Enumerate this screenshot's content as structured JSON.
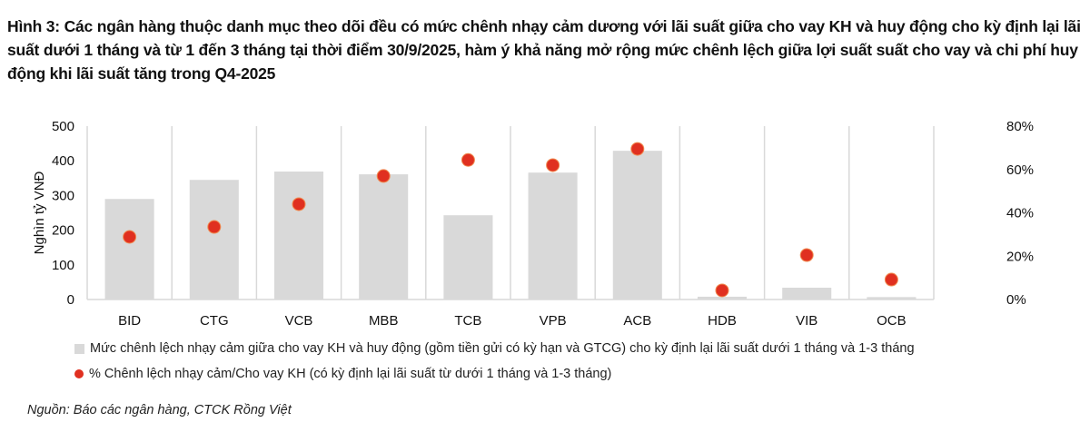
{
  "title": "Hình 3: Các ngân hàng thuộc danh mục theo dõi đều có mức chênh nhạy cảm dương với lãi suất giữa cho vay KH và huy động cho kỳ định lại lãi suất dưới 1 tháng và từ 1 đến 3 tháng tại thời điểm 30/9/2025, hàm ý khả năng mở rộng mức chênh lệch giữa lợi suất suất cho vay và chi phí huy động khi lãi suất tăng trong Q4-2025",
  "source": "Nguồn: Báo các ngân hàng, CTCK Rồng Việt",
  "chart_data": {
    "type": "bar+scatter",
    "categories": [
      "BID",
      "CTG",
      "VCB",
      "MBB",
      "TCB",
      "VPB",
      "ACB",
      "HDB",
      "VIB",
      "OCB"
    ],
    "ylabel": "Nghìn tỷ VNĐ",
    "ylim": [
      0,
      500
    ],
    "yticks": [
      "0",
      "100",
      "200",
      "300",
      "400",
      "500"
    ],
    "y2lim": [
      0,
      80
    ],
    "y2ticks": [
      "0%",
      "20%",
      "40%",
      "60%",
      "80%"
    ],
    "legend_position": "bottom",
    "series": [
      {
        "name": "Mức chênh lệch nhạy cảm giữa cho vay KH và huy động (gồm tiền gửi có kỳ hạn và GTCG) cho kỳ định lại lãi suất dưới 1 tháng và 1-3 tháng",
        "type": "bar",
        "axis": "left",
        "color": "#d9d9d9",
        "values": [
          290,
          345,
          369,
          361,
          243,
          366,
          429,
          8,
          34,
          7
        ]
      },
      {
        "name": "% Chênh lệch nhạy cảm/Cho vay KH (có kỳ định lại lãi suất từ dưới 1 tháng và 1-3 tháng)",
        "type": "scatter",
        "axis": "right",
        "color": "#e03020",
        "values": [
          28.9,
          33.5,
          44,
          57,
          64.4,
          62,
          69.5,
          4.2,
          20.5,
          9.2
        ]
      }
    ]
  }
}
